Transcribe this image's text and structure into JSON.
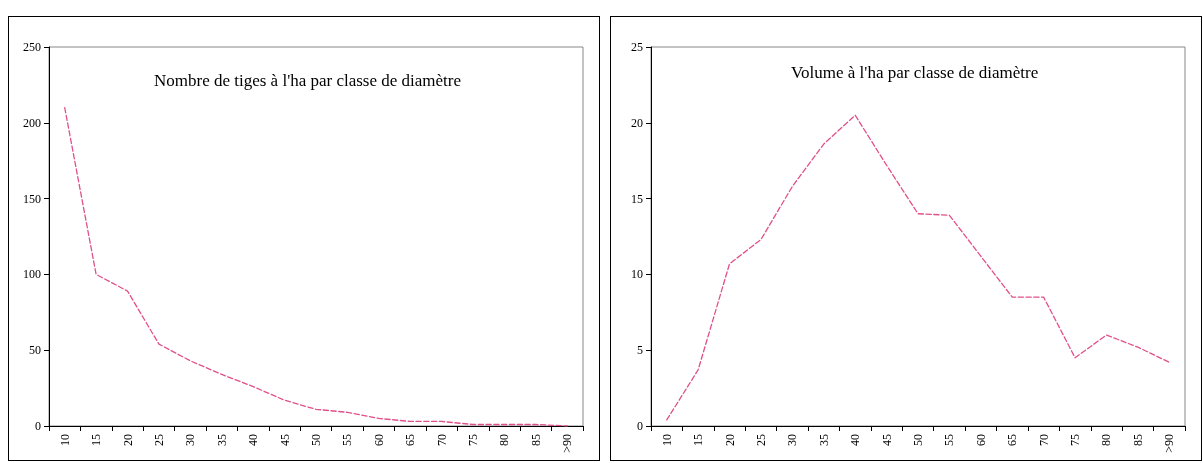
{
  "chart_data": [
    {
      "type": "line",
      "title": "Nombre de tiges à l'ha par classe de diamètre",
      "categories": [
        "10",
        "15",
        "20",
        "25",
        "30",
        "35",
        "40",
        "45",
        "50",
        "55",
        "60",
        "65",
        "70",
        "75",
        "80",
        "85",
        ">90"
      ],
      "series": [
        {
          "color": "#e0508a",
          "values": [
            210,
            100,
            89,
            54,
            43,
            34,
            26,
            17,
            11,
            9,
            5,
            3,
            3,
            1,
            1,
            1,
            0
          ]
        }
      ],
      "ylim": [
        0,
        250
      ],
      "yticks": [
        0,
        50,
        100,
        150,
        200,
        250
      ],
      "grid": false,
      "marker": "none",
      "line_style": "dashed"
    },
    {
      "type": "line",
      "title": "Volume à l'ha par classe de diamètre",
      "categories": [
        "10",
        "15",
        "20",
        "25",
        "30",
        "35",
        "40",
        "45",
        "50",
        "55",
        "60",
        "65",
        "70",
        "75",
        "80",
        "85",
        ">90"
      ],
      "series": [
        {
          "color": "#e0508a",
          "values": [
            0.4,
            3.7,
            10.7,
            12.3,
            15.8,
            18.6,
            20.5,
            17.2,
            14.0,
            13.9,
            11.2,
            8.5,
            8.5,
            4.5,
            6.0,
            5.2,
            4.2
          ]
        }
      ],
      "ylim": [
        0,
        25
      ],
      "yticks": [
        0,
        5,
        10,
        15,
        20,
        25
      ],
      "grid": false,
      "marker": "none",
      "line_style": "dashed"
    }
  ]
}
